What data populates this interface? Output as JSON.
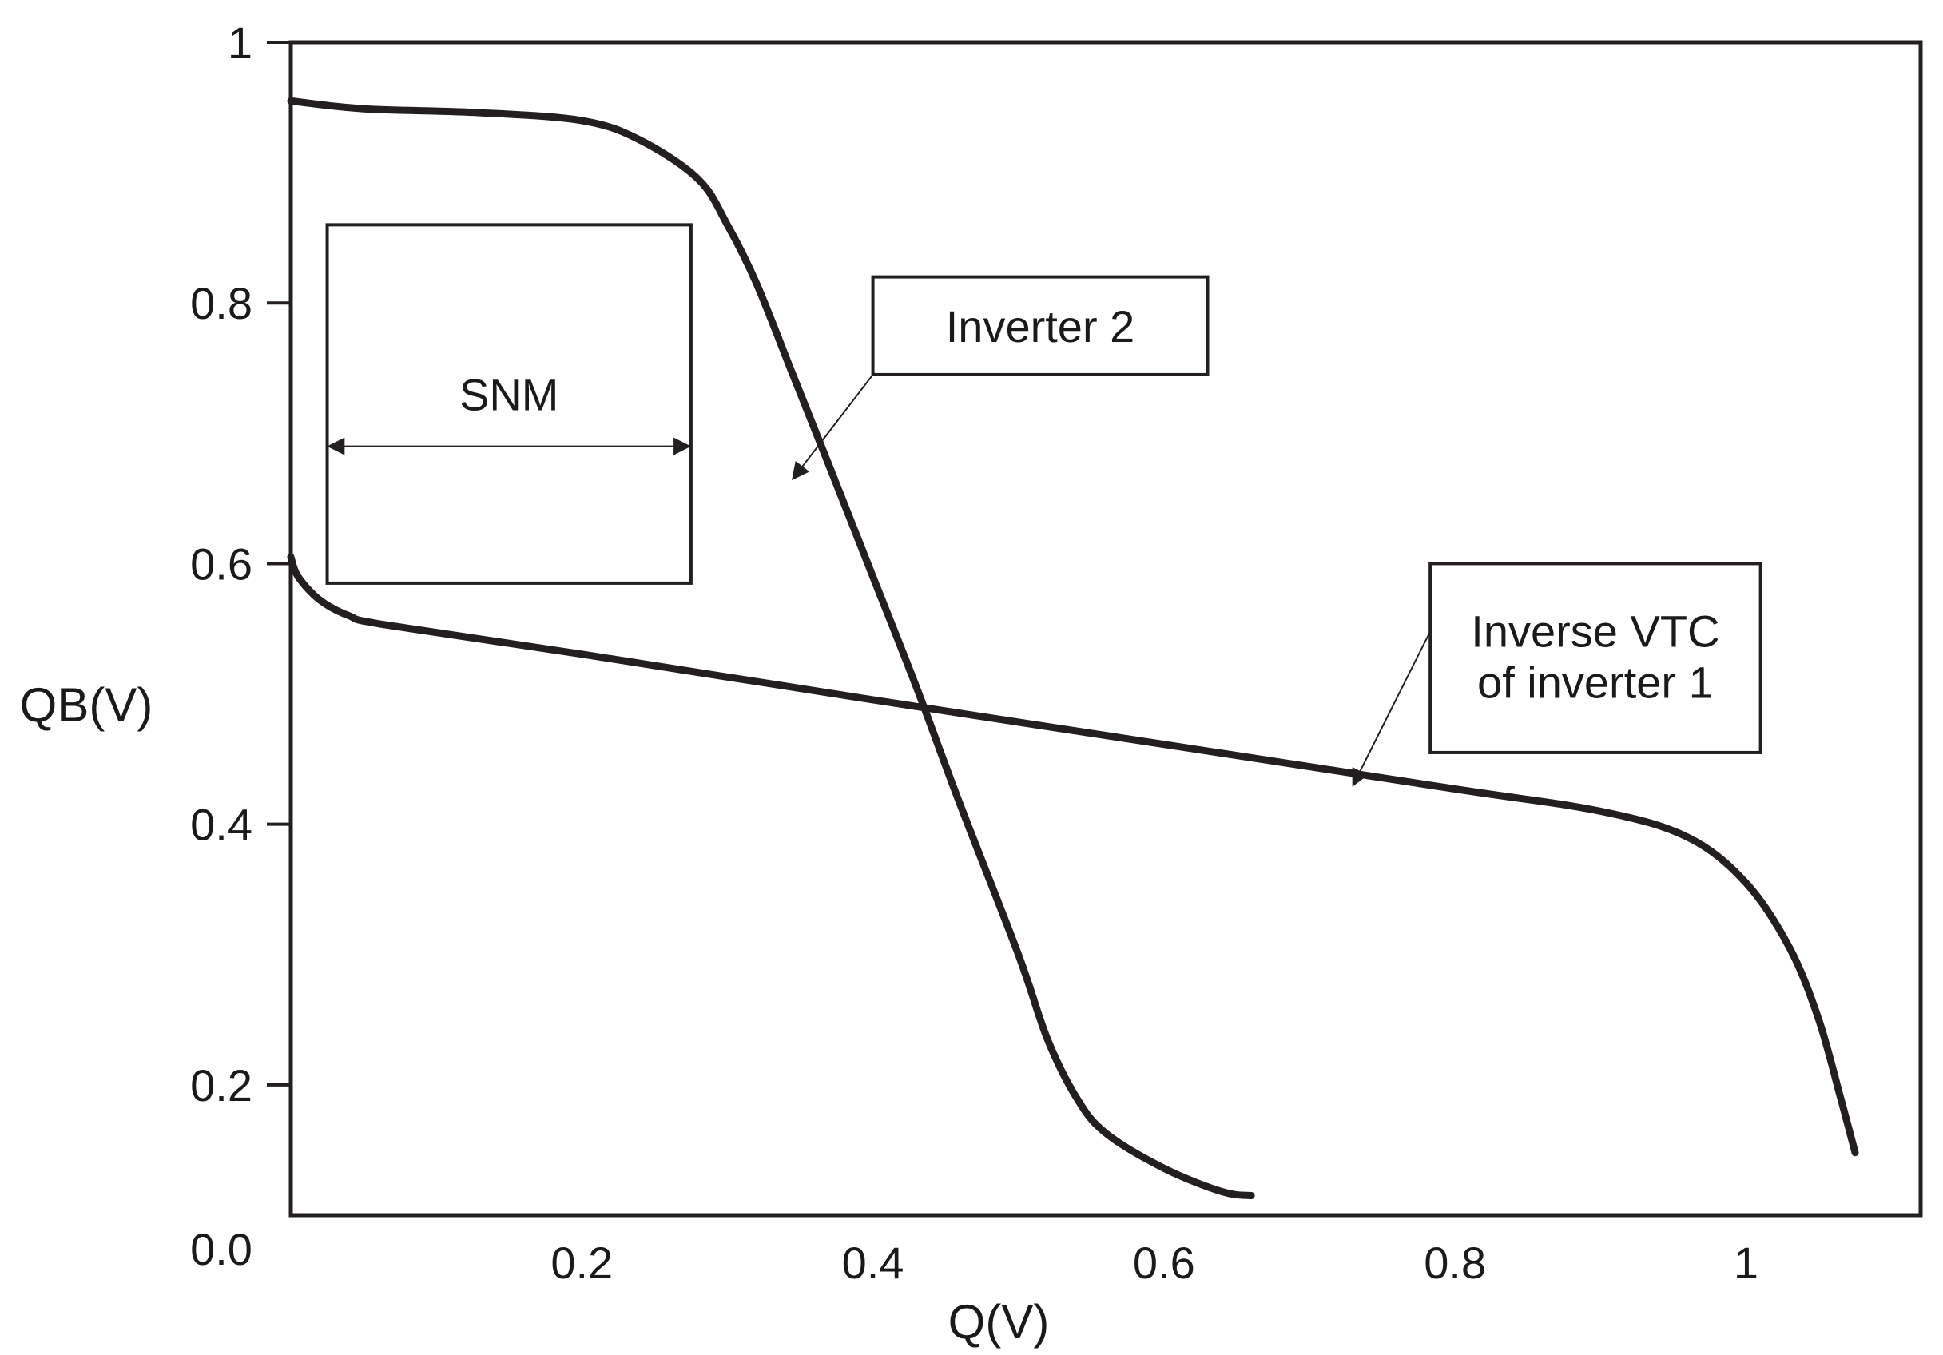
{
  "chart_data": {
    "type": "line",
    "title": "",
    "xlabel": "Q(V)",
    "ylabel": "QB(V)",
    "origin_label": "0.0",
    "xlim": [
      0,
      1.12
    ],
    "ylim": [
      0.1,
      1.0
    ],
    "x_ticks": [
      {
        "value": 0.2,
        "label": "0.2"
      },
      {
        "value": 0.4,
        "label": "0.4"
      },
      {
        "value": 0.6,
        "label": "0.6"
      },
      {
        "value": 0.8,
        "label": "0.8"
      },
      {
        "value": 1.0,
        "label": "1"
      }
    ],
    "y_ticks": [
      {
        "value": 0.2,
        "label": "0.2"
      },
      {
        "value": 0.4,
        "label": "0.4"
      },
      {
        "value": 0.6,
        "label": "0.6"
      },
      {
        "value": 0.8,
        "label": "0.8"
      },
      {
        "value": 1.0,
        "label": "1"
      }
    ],
    "series": [
      {
        "name": "Inverter 2",
        "x": [
          0.0,
          0.05,
          0.13,
          0.2,
          0.24,
          0.28,
          0.3,
          0.32,
          0.345,
          0.37,
          0.4,
          0.43,
          0.46,
          0.5,
          0.52,
          0.54,
          0.56,
          0.6,
          0.64,
          0.66
        ],
        "y": [
          0.955,
          0.949,
          0.946,
          0.94,
          0.925,
          0.895,
          0.86,
          0.815,
          0.745,
          0.675,
          0.59,
          0.505,
          0.415,
          0.3,
          0.235,
          0.19,
          0.163,
          0.136,
          0.118,
          0.115
        ]
      },
      {
        "name": "Inverse VTC of inverter 1",
        "x": [
          0.0,
          0.005,
          0.02,
          0.04,
          0.065,
          0.2,
          0.4,
          0.6,
          0.8,
          0.9,
          0.96,
          1.0,
          1.03,
          1.05,
          1.065,
          1.075
        ],
        "y": [
          0.605,
          0.59,
          0.572,
          0.56,
          0.553,
          0.5305,
          0.4955,
          0.4613,
          0.4271,
          0.41,
          0.39,
          0.355,
          0.305,
          0.25,
          0.19,
          0.148
        ]
      }
    ],
    "annotations": [
      {
        "text": "SNM",
        "type": "box-with-double-arrow",
        "box_x": [
          0.025,
          0.275
        ],
        "box_y": [
          0.585,
          0.86
        ],
        "arrow_y": 0.69
      },
      {
        "text": "Inverter 2",
        "type": "callout-box",
        "box_x": [
          0.4,
          0.63
        ],
        "box_y": [
          0.745,
          0.82
        ],
        "arrow_to": [
          0.345,
          0.665
        ]
      },
      {
        "text": [
          "Inverse VTC",
          "of inverter 1"
        ],
        "type": "callout-box",
        "box_x": [
          0.783,
          1.01
        ],
        "box_y": [
          0.455,
          0.6
        ],
        "arrow_to": [
          0.73,
          0.43
        ]
      }
    ]
  }
}
